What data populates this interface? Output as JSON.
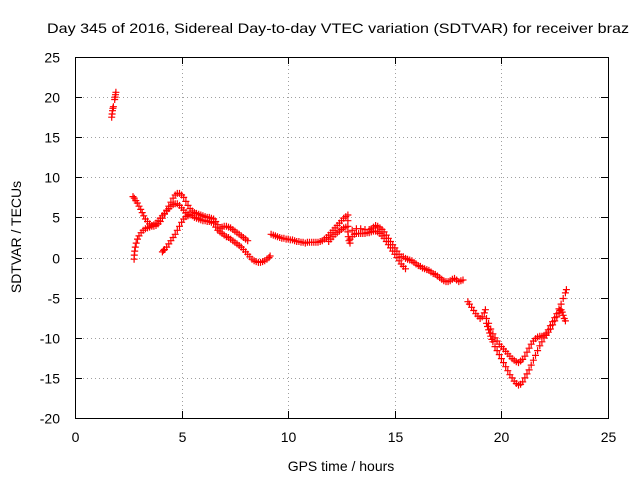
{
  "chart_data": {
    "type": "scatter",
    "title": "Day 345 of 2016, Sidereal Day-to-day VTEC variation (SDTVAR) for receiver braz",
    "xlabel": "GPS time / hours",
    "ylabel": "SDTVAR / TECUs",
    "xlim": [
      0,
      25
    ],
    "ylim": [
      -20,
      25
    ],
    "xticks": [
      0,
      5,
      10,
      15,
      20,
      25
    ],
    "yticks": [
      25,
      20,
      15,
      10,
      5,
      0,
      -5,
      -10,
      -15,
      -20
    ],
    "grid": true,
    "colors": {
      "marker": "#ff0000",
      "grid": "#a0a0a0",
      "axis": "#000000"
    },
    "points": [
      [
        1.72,
        17.5
      ],
      [
        1.74,
        17.9
      ],
      [
        1.76,
        18.3
      ],
      [
        1.78,
        18.6
      ],
      [
        1.8,
        18.8
      ],
      [
        1.86,
        19.7
      ],
      [
        1.88,
        20.0
      ],
      [
        1.9,
        20.3
      ],
      [
        1.92,
        20.6
      ],
      [
        2.72,
        7.6
      ],
      [
        2.78,
        7.4
      ],
      [
        2.85,
        7.1
      ],
      [
        2.92,
        6.8
      ],
      [
        3.0,
        6.4
      ],
      [
        3.08,
        6.0
      ],
      [
        3.15,
        5.6
      ],
      [
        3.22,
        5.2
      ],
      [
        3.3,
        4.8
      ],
      [
        3.4,
        4.5
      ],
      [
        3.5,
        4.2
      ],
      [
        3.6,
        4.0
      ],
      [
        3.7,
        3.9
      ],
      [
        3.8,
        4.0
      ],
      [
        3.9,
        4.2
      ],
      [
        4.0,
        4.5
      ],
      [
        4.1,
        4.9
      ],
      [
        4.2,
        5.4
      ],
      [
        4.3,
        5.9
      ],
      [
        4.4,
        6.4
      ],
      [
        4.5,
        6.9
      ],
      [
        4.6,
        7.4
      ],
      [
        4.7,
        7.8
      ],
      [
        4.8,
        8.0
      ],
      [
        4.9,
        8.0
      ],
      [
        5.0,
        7.8
      ],
      [
        5.1,
        7.5
      ],
      [
        5.2,
        7.0
      ],
      [
        5.3,
        6.5
      ],
      [
        5.4,
        6.1
      ],
      [
        5.5,
        5.8
      ],
      [
        5.6,
        5.6
      ],
      [
        2.77,
        -0.2
      ],
      [
        2.78,
        0.3
      ],
      [
        2.8,
        0.8
      ],
      [
        2.83,
        1.3
      ],
      [
        2.87,
        1.8
      ],
      [
        2.93,
        2.3
      ],
      [
        3.0,
        2.7
      ],
      [
        3.1,
        3.1
      ],
      [
        3.2,
        3.4
      ],
      [
        3.3,
        3.6
      ],
      [
        3.4,
        3.7
      ],
      [
        3.5,
        3.8
      ],
      [
        3.6,
        3.9
      ],
      [
        3.7,
        4.1
      ],
      [
        3.8,
        4.3
      ],
      [
        3.9,
        4.6
      ],
      [
        4.0,
        4.9
      ],
      [
        4.1,
        5.2
      ],
      [
        4.2,
        5.5
      ],
      [
        4.3,
        5.8
      ],
      [
        4.4,
        6.1
      ],
      [
        4.5,
        6.4
      ],
      [
        4.6,
        6.6
      ],
      [
        4.7,
        6.7
      ],
      [
        4.8,
        6.7
      ],
      [
        4.9,
        6.5
      ],
      [
        5.0,
        6.2
      ],
      [
        5.1,
        5.9
      ],
      [
        5.2,
        5.6
      ],
      [
        5.3,
        5.4
      ],
      [
        5.4,
        5.3
      ],
      [
        5.5,
        5.2
      ],
      [
        4.1,
        0.7
      ],
      [
        4.15,
        0.9
      ],
      [
        4.2,
        1.0
      ],
      [
        4.3,
        1.3
      ],
      [
        4.4,
        1.7
      ],
      [
        4.5,
        2.1
      ],
      [
        4.6,
        2.5
      ],
      [
        4.7,
        2.9
      ],
      [
        4.8,
        3.4
      ],
      [
        4.9,
        3.9
      ],
      [
        5.0,
        4.4
      ],
      [
        5.1,
        4.8
      ],
      [
        5.2,
        5.1
      ],
      [
        5.3,
        5.2
      ],
      [
        5.7,
        5.5
      ],
      [
        5.8,
        5.4
      ],
      [
        5.9,
        5.3
      ],
      [
        6.0,
        5.2
      ],
      [
        6.1,
        5.1
      ],
      [
        6.2,
        5.0
      ],
      [
        6.3,
        5.0
      ],
      [
        6.4,
        4.9
      ],
      [
        6.5,
        4.8
      ],
      [
        6.6,
        4.5
      ],
      [
        6.7,
        4.1
      ],
      [
        5.6,
        5.0
      ],
      [
        5.7,
        4.9
      ],
      [
        5.8,
        4.8
      ],
      [
        5.9,
        4.7
      ],
      [
        6.0,
        4.6
      ],
      [
        6.1,
        4.6
      ],
      [
        6.2,
        4.5
      ],
      [
        6.3,
        4.5
      ],
      [
        6.4,
        4.4
      ],
      [
        6.5,
        4.3
      ],
      [
        6.6,
        3.8
      ],
      [
        6.7,
        3.4
      ],
      [
        6.8,
        3.2
      ],
      [
        6.9,
        3.0
      ],
      [
        7.0,
        2.8
      ],
      [
        7.1,
        2.6
      ],
      [
        7.2,
        2.5
      ],
      [
        7.3,
        2.3
      ],
      [
        7.4,
        2.1
      ],
      [
        7.5,
        1.9
      ],
      [
        7.6,
        1.7
      ],
      [
        7.7,
        1.5
      ],
      [
        7.8,
        1.3
      ],
      [
        7.9,
        1.0
      ],
      [
        8.0,
        0.7
      ],
      [
        8.1,
        0.4
      ],
      [
        8.2,
        0.1
      ],
      [
        8.3,
        -0.2
      ],
      [
        8.4,
        -0.4
      ],
      [
        8.5,
        -0.5
      ],
      [
        8.6,
        -0.6
      ],
      [
        8.7,
        -0.6
      ],
      [
        8.8,
        -0.5
      ],
      [
        8.9,
        -0.4
      ],
      [
        9.0,
        -0.2
      ],
      [
        9.1,
        0.0
      ],
      [
        9.15,
        0.2
      ],
      [
        6.8,
        3.6
      ],
      [
        6.9,
        3.8
      ],
      [
        7.0,
        3.9
      ],
      [
        7.1,
        3.9
      ],
      [
        7.2,
        3.8
      ],
      [
        7.3,
        3.7
      ],
      [
        7.4,
        3.5
      ],
      [
        7.5,
        3.3
      ],
      [
        7.6,
        3.1
      ],
      [
        7.7,
        2.9
      ],
      [
        7.8,
        2.7
      ],
      [
        7.9,
        2.5
      ],
      [
        8.0,
        2.3
      ],
      [
        8.1,
        2.1
      ],
      [
        9.2,
        2.9
      ],
      [
        9.3,
        2.8
      ],
      [
        9.4,
        2.7
      ],
      [
        9.5,
        2.6
      ],
      [
        9.6,
        2.5
      ],
      [
        9.7,
        2.4
      ],
      [
        9.8,
        2.4
      ],
      [
        9.9,
        2.3
      ],
      [
        10.0,
        2.3
      ],
      [
        10.1,
        2.2
      ],
      [
        10.2,
        2.2
      ],
      [
        10.3,
        2.1
      ],
      [
        10.4,
        2.0
      ],
      [
        10.5,
        2.0
      ],
      [
        10.6,
        1.9
      ],
      [
        10.7,
        1.9
      ],
      [
        10.8,
        1.8
      ],
      [
        10.9,
        1.9
      ],
      [
        11.0,
        1.9
      ],
      [
        11.1,
        1.9
      ],
      [
        11.2,
        1.9
      ],
      [
        11.3,
        1.9
      ],
      [
        11.4,
        1.9
      ],
      [
        11.5,
        2.0
      ],
      [
        11.6,
        2.1
      ],
      [
        11.7,
        2.3
      ],
      [
        11.8,
        2.5
      ],
      [
        11.9,
        2.8
      ],
      [
        12.0,
        3.1
      ],
      [
        12.1,
        3.4
      ],
      [
        12.2,
        3.7
      ],
      [
        12.3,
        4.0
      ],
      [
        12.4,
        4.3
      ],
      [
        12.5,
        4.6
      ],
      [
        12.6,
        4.9
      ],
      [
        12.7,
        5.1
      ],
      [
        12.8,
        5.3
      ],
      [
        11.9,
        2.0
      ],
      [
        12.0,
        2.3
      ],
      [
        12.1,
        2.6
      ],
      [
        12.2,
        2.9
      ],
      [
        12.3,
        3.1
      ],
      [
        12.4,
        3.3
      ],
      [
        12.5,
        3.5
      ],
      [
        12.6,
        3.7
      ],
      [
        12.7,
        3.8
      ],
      [
        12.8,
        4.6
      ],
      [
        12.8,
        3.9
      ],
      [
        12.8,
        3.2
      ],
      [
        12.82,
        2.6
      ],
      [
        12.85,
        2.1
      ],
      [
        12.9,
        1.8
      ],
      [
        12.9,
        2.3
      ],
      [
        13.0,
        2.6
      ],
      [
        13.1,
        2.9
      ],
      [
        13.2,
        3.0
      ],
      [
        13.3,
        3.0
      ],
      [
        13.4,
        3.0
      ],
      [
        13.5,
        3.0
      ],
      [
        13.6,
        3.0
      ],
      [
        13.7,
        3.1
      ],
      [
        13.8,
        3.1
      ],
      [
        13.9,
        3.2
      ],
      [
        14.0,
        3.3
      ],
      [
        14.1,
        3.3
      ],
      [
        14.2,
        3.2
      ],
      [
        14.3,
        3.0
      ],
      [
        14.4,
        2.7
      ],
      [
        14.5,
        2.4
      ],
      [
        14.6,
        2.0
      ],
      [
        14.7,
        1.6
      ],
      [
        14.8,
        1.2
      ],
      [
        14.9,
        0.8
      ],
      [
        15.0,
        0.4
      ],
      [
        15.1,
        0.0
      ],
      [
        15.2,
        -0.4
      ],
      [
        15.3,
        -0.8
      ],
      [
        15.4,
        -1.1
      ],
      [
        15.5,
        -1.4
      ],
      [
        13.0,
        3.4
      ],
      [
        13.2,
        3.6
      ],
      [
        13.4,
        3.6
      ],
      [
        13.6,
        3.5
      ],
      [
        13.8,
        3.5
      ],
      [
        13.9,
        3.6
      ],
      [
        14.0,
        3.8
      ],
      [
        14.1,
        4.0
      ],
      [
        14.2,
        3.9
      ],
      [
        14.3,
        3.7
      ],
      [
        14.4,
        3.5
      ],
      [
        14.5,
        3.2
      ],
      [
        14.6,
        2.8
      ],
      [
        14.7,
        2.4
      ],
      [
        14.8,
        2.0
      ],
      [
        14.9,
        1.6
      ],
      [
        15.0,
        1.2
      ],
      [
        15.1,
        0.8
      ],
      [
        15.2,
        0.4
      ],
      [
        15.3,
        0.1
      ],
      [
        15.4,
        0.1
      ],
      [
        15.5,
        -0.1
      ],
      [
        15.6,
        -0.2
      ],
      [
        15.7,
        -0.3
      ],
      [
        15.8,
        -0.4
      ],
      [
        15.9,
        -0.6
      ],
      [
        16.0,
        -0.8
      ],
      [
        16.1,
        -1.0
      ],
      [
        16.2,
        -1.1
      ],
      [
        16.3,
        -1.3
      ],
      [
        16.4,
        -1.4
      ],
      [
        16.5,
        -1.5
      ],
      [
        16.6,
        -1.6
      ],
      [
        16.7,
        -1.8
      ],
      [
        16.8,
        -2.0
      ],
      [
        16.9,
        -2.1
      ],
      [
        17.0,
        -2.3
      ],
      [
        17.1,
        -2.5
      ],
      [
        17.2,
        -2.7
      ],
      [
        17.3,
        -2.9
      ],
      [
        17.4,
        -3.0
      ],
      [
        17.5,
        -3.0
      ],
      [
        17.6,
        -2.9
      ],
      [
        17.7,
        -2.7
      ],
      [
        17.8,
        -2.6
      ],
      [
        17.9,
        -2.8
      ],
      [
        18.0,
        -3.0
      ],
      [
        18.1,
        -2.9
      ],
      [
        18.2,
        -2.8
      ],
      [
        18.43,
        -5.5
      ],
      [
        18.5,
        -5.8
      ],
      [
        18.6,
        -6.2
      ],
      [
        18.7,
        -6.6
      ],
      [
        18.8,
        -7.0
      ],
      [
        18.9,
        -7.3
      ],
      [
        19.0,
        -7.6
      ],
      [
        19.1,
        -7.4
      ],
      [
        19.2,
        -6.9
      ],
      [
        19.25,
        -6.5
      ],
      [
        19.3,
        -8.2
      ],
      [
        19.35,
        -8.6
      ],
      [
        19.4,
        -9.0
      ],
      [
        19.45,
        -9.4
      ],
      [
        19.5,
        -9.8
      ],
      [
        19.55,
        -10.2
      ],
      [
        19.6,
        -10.5
      ],
      [
        19.7,
        -11.1
      ],
      [
        19.8,
        -11.6
      ],
      [
        19.9,
        -12.1
      ],
      [
        20.0,
        -12.6
      ],
      [
        20.1,
        -13.1
      ],
      [
        20.2,
        -13.6
      ],
      [
        20.3,
        -14.1
      ],
      [
        20.4,
        -14.6
      ],
      [
        20.5,
        -15.0
      ],
      [
        20.6,
        -15.4
      ],
      [
        20.7,
        -15.7
      ],
      [
        20.8,
        -15.9
      ],
      [
        20.9,
        -15.8
      ],
      [
        21.0,
        -15.5
      ],
      [
        21.1,
        -15.0
      ],
      [
        21.2,
        -14.5
      ],
      [
        21.3,
        -14.0
      ],
      [
        21.4,
        -13.4
      ],
      [
        21.5,
        -12.8
      ],
      [
        21.6,
        -12.2
      ],
      [
        21.7,
        -11.6
      ],
      [
        21.8,
        -11.0
      ],
      [
        21.9,
        -10.5
      ],
      [
        22.0,
        -10.0
      ],
      [
        22.1,
        -9.5
      ],
      [
        22.2,
        -9.0
      ],
      [
        22.3,
        -8.5
      ],
      [
        22.4,
        -8.0
      ],
      [
        22.5,
        -7.5
      ],
      [
        22.6,
        -7.0
      ],
      [
        22.7,
        -6.4
      ],
      [
        22.8,
        -5.8
      ],
      [
        22.9,
        -5.1
      ],
      [
        23.0,
        -4.4
      ],
      [
        23.05,
        -4.0
      ],
      [
        19.3,
        -7.6
      ],
      [
        19.4,
        -8.2
      ],
      [
        19.5,
        -8.9
      ],
      [
        19.6,
        -9.5
      ],
      [
        19.7,
        -10.0
      ],
      [
        19.8,
        -10.4
      ],
      [
        19.9,
        -10.8
      ],
      [
        20.0,
        -11.1
      ],
      [
        20.1,
        -11.4
      ],
      [
        20.2,
        -11.7
      ],
      [
        20.3,
        -12.0
      ],
      [
        20.4,
        -12.3
      ],
      [
        20.5,
        -12.6
      ],
      [
        20.6,
        -12.8
      ],
      [
        20.7,
        -13.0
      ],
      [
        20.8,
        -13.1
      ],
      [
        20.9,
        -12.9
      ],
      [
        21.0,
        -12.7
      ],
      [
        21.1,
        -12.3
      ],
      [
        21.2,
        -11.8
      ],
      [
        21.3,
        -11.3
      ],
      [
        21.4,
        -10.8
      ],
      [
        21.5,
        -10.4
      ],
      [
        21.6,
        -10.1
      ],
      [
        21.7,
        -9.9
      ],
      [
        21.8,
        -9.8
      ],
      [
        21.9,
        -9.8
      ],
      [
        22.0,
        -9.7
      ],
      [
        22.1,
        -9.7
      ],
      [
        22.2,
        -9.3
      ],
      [
        22.3,
        -8.9
      ],
      [
        22.4,
        -8.4
      ],
      [
        22.5,
        -7.9
      ],
      [
        22.6,
        -7.4
      ],
      [
        22.7,
        -6.9
      ],
      [
        22.75,
        -6.6
      ],
      [
        22.8,
        -6.5
      ],
      [
        22.85,
        -6.8
      ],
      [
        22.9,
        -7.2
      ],
      [
        22.95,
        -7.6
      ],
      [
        23.0,
        -7.9
      ]
    ]
  }
}
